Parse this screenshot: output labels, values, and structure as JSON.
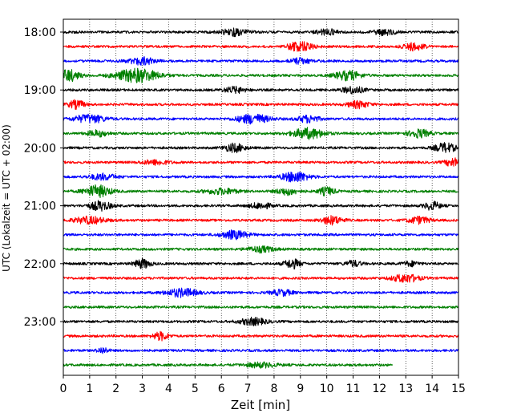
{
  "chart_data": {
    "type": "line",
    "title": "",
    "xlabel": "Zeit  [min]",
    "ylabel": "UTC (Lokalzeit = UTC + 02:00)",
    "xlim": [
      0,
      15
    ],
    "x_ticks": [
      0,
      1,
      2,
      3,
      4,
      5,
      6,
      7,
      8,
      9,
      10,
      11,
      12,
      13,
      14,
      15
    ],
    "y_tick_labels": [
      "18:00",
      "19:00",
      "20:00",
      "21:00",
      "22:00",
      "23:00"
    ],
    "row_interval_min": 15,
    "grid": "vertical dotted lines at x ticks",
    "colors": [
      "#000000",
      "#ff0000",
      "#0000ff",
      "#008000"
    ],
    "traces": [
      {
        "start": "18:00",
        "color": "#000000",
        "end_min": 15,
        "events": [
          [
            6.5,
            0.6,
            0.5
          ],
          [
            10.0,
            0.5,
            0.4
          ],
          [
            12.2,
            0.5,
            0.4
          ]
        ]
      },
      {
        "start": "18:15",
        "color": "#ff0000",
        "end_min": 15,
        "events": [
          [
            9.0,
            0.8,
            0.5
          ],
          [
            13.3,
            0.6,
            0.4
          ]
        ]
      },
      {
        "start": "18:30",
        "color": "#0000ff",
        "end_min": 15,
        "events": [
          [
            3.0,
            0.6,
            0.5
          ],
          [
            9.0,
            0.5,
            0.4
          ]
        ]
      },
      {
        "start": "18:45",
        "color": "#008000",
        "end_min": 15,
        "events": [
          [
            0.2,
            1.0,
            0.4
          ],
          [
            2.8,
            1.2,
            0.8
          ],
          [
            10.8,
            0.8,
            0.5
          ]
        ]
      },
      {
        "start": "19:00",
        "color": "#000000",
        "end_min": 15,
        "events": [
          [
            6.5,
            0.5,
            0.4
          ],
          [
            11.0,
            0.6,
            0.4
          ]
        ]
      },
      {
        "start": "19:15",
        "color": "#ff0000",
        "end_min": 15,
        "events": [
          [
            0.5,
            0.7,
            0.3
          ],
          [
            11.2,
            0.6,
            0.4
          ]
        ]
      },
      {
        "start": "19:30",
        "color": "#0000ff",
        "end_min": 15,
        "events": [
          [
            1.0,
            0.7,
            0.6
          ],
          [
            7.2,
            0.8,
            0.6
          ],
          [
            9.3,
            0.6,
            0.4
          ]
        ]
      },
      {
        "start": "19:45",
        "color": "#008000",
        "end_min": 15,
        "events": [
          [
            1.3,
            0.5,
            0.4
          ],
          [
            9.3,
            0.9,
            0.6
          ],
          [
            13.5,
            0.7,
            0.4
          ]
        ]
      },
      {
        "start": "20:00",
        "color": "#000000",
        "end_min": 15,
        "events": [
          [
            6.5,
            0.7,
            0.4
          ],
          [
            14.5,
            0.8,
            0.4
          ]
        ]
      },
      {
        "start": "20:15",
        "color": "#ff0000",
        "end_min": 15,
        "events": [
          [
            3.5,
            0.4,
            0.5
          ],
          [
            14.8,
            0.7,
            0.3
          ]
        ]
      },
      {
        "start": "20:30",
        "color": "#0000ff",
        "end_min": 15,
        "events": [
          [
            1.5,
            0.5,
            0.5
          ],
          [
            8.8,
            0.9,
            0.5
          ]
        ]
      },
      {
        "start": "20:45",
        "color": "#008000",
        "end_min": 15,
        "events": [
          [
            1.3,
            1.0,
            0.5
          ],
          [
            6.0,
            0.5,
            0.6
          ],
          [
            8.5,
            0.6,
            0.4
          ],
          [
            10.0,
            0.7,
            0.3
          ]
        ]
      },
      {
        "start": "21:00",
        "color": "#000000",
        "end_min": 15,
        "events": [
          [
            1.4,
            0.8,
            0.4
          ],
          [
            7.5,
            0.5,
            0.4
          ],
          [
            14.0,
            0.7,
            0.3
          ]
        ]
      },
      {
        "start": "21:15",
        "color": "#ff0000",
        "end_min": 15,
        "events": [
          [
            1.0,
            0.6,
            0.6
          ],
          [
            10.2,
            0.7,
            0.4
          ],
          [
            13.5,
            0.6,
            0.4
          ]
        ]
      },
      {
        "start": "21:30",
        "color": "#0000ff",
        "end_min": 15,
        "events": [
          [
            6.5,
            0.7,
            0.5
          ]
        ]
      },
      {
        "start": "21:45",
        "color": "#008000",
        "end_min": 15,
        "events": [
          [
            7.5,
            0.5,
            0.5
          ]
        ]
      },
      {
        "start": "22:00",
        "color": "#000000",
        "end_min": 15,
        "events": [
          [
            3.0,
            0.8,
            0.3
          ],
          [
            8.7,
            0.8,
            0.3
          ],
          [
            11.0,
            0.5,
            0.3
          ],
          [
            13.2,
            0.4,
            0.3
          ]
        ]
      },
      {
        "start": "22:15",
        "color": "#ff0000",
        "end_min": 15,
        "events": [
          [
            13.0,
            0.7,
            0.5
          ]
        ]
      },
      {
        "start": "22:30",
        "color": "#0000ff",
        "end_min": 15,
        "events": [
          [
            4.5,
            0.7,
            0.6
          ],
          [
            8.3,
            0.5,
            0.4
          ]
        ]
      },
      {
        "start": "22:45",
        "color": "#008000",
        "end_min": 15,
        "events": []
      },
      {
        "start": "23:00",
        "color": "#000000",
        "end_min": 15,
        "events": [
          [
            7.2,
            0.6,
            0.5
          ]
        ]
      },
      {
        "start": "23:15",
        "color": "#ff0000",
        "end_min": 15,
        "events": [
          [
            3.7,
            0.7,
            0.3
          ]
        ]
      },
      {
        "start": "23:30",
        "color": "#0000ff",
        "end_min": 15,
        "events": [
          [
            1.5,
            0.5,
            0.2
          ]
        ]
      },
      {
        "start": "23:45",
        "color": "#008000",
        "end_min": 12.5,
        "events": [
          [
            7.5,
            0.4,
            0.6
          ]
        ]
      }
    ]
  }
}
